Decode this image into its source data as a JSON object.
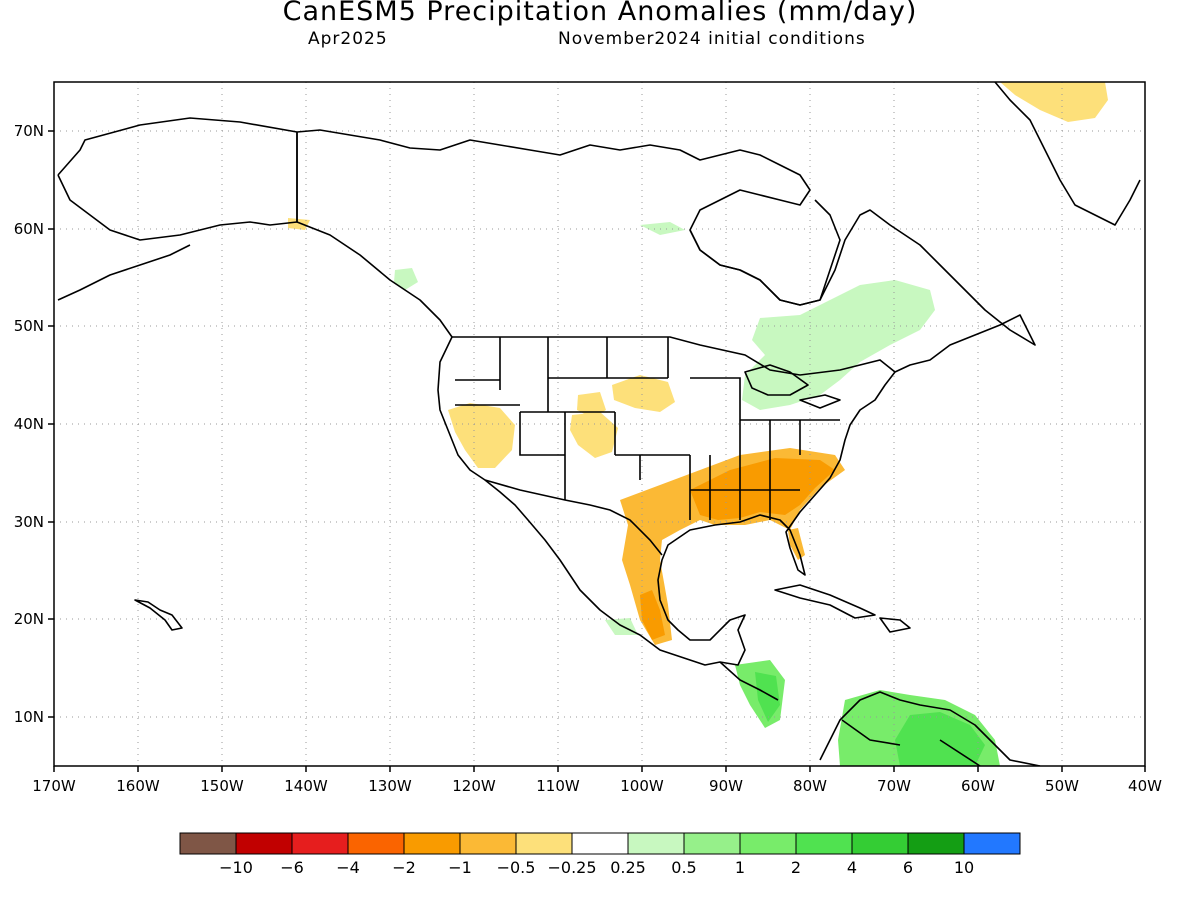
{
  "title": "CanESM5 Precipitation Anomalies (mm/day)",
  "subtitle_left": "Apr2025",
  "subtitle_right": "November2024 initial conditions",
  "map": {
    "lon_range": [
      -170,
      -40
    ],
    "lat_range": [
      5,
      75
    ],
    "lon_ticks": [
      "170W",
      "160W",
      "150W",
      "140W",
      "130W",
      "120W",
      "110W",
      "100W",
      "90W",
      "80W",
      "70W",
      "60W",
      "50W",
      "40W"
    ],
    "lat_ticks": [
      "10N",
      "20N",
      "30N",
      "40N",
      "50N",
      "60N",
      "70N"
    ],
    "grid": "dotted"
  },
  "colorbar": {
    "colors": [
      "#7f5646",
      "#c10000",
      "#e61e1e",
      "#fa6400",
      "#f99b00",
      "#fbb935",
      "#fde07a",
      "#ffffff",
      "#c8f8c0",
      "#96f08a",
      "#78ec6a",
      "#50e250",
      "#34cd34",
      "#149e14",
      "#2278ff"
    ],
    "labels": [
      "−10",
      "−6",
      "−4",
      "−2",
      "−1",
      "−0.5",
      "−0.25",
      "0.25",
      "0.5",
      "1",
      "2",
      "4",
      "6",
      "10"
    ]
  }
}
